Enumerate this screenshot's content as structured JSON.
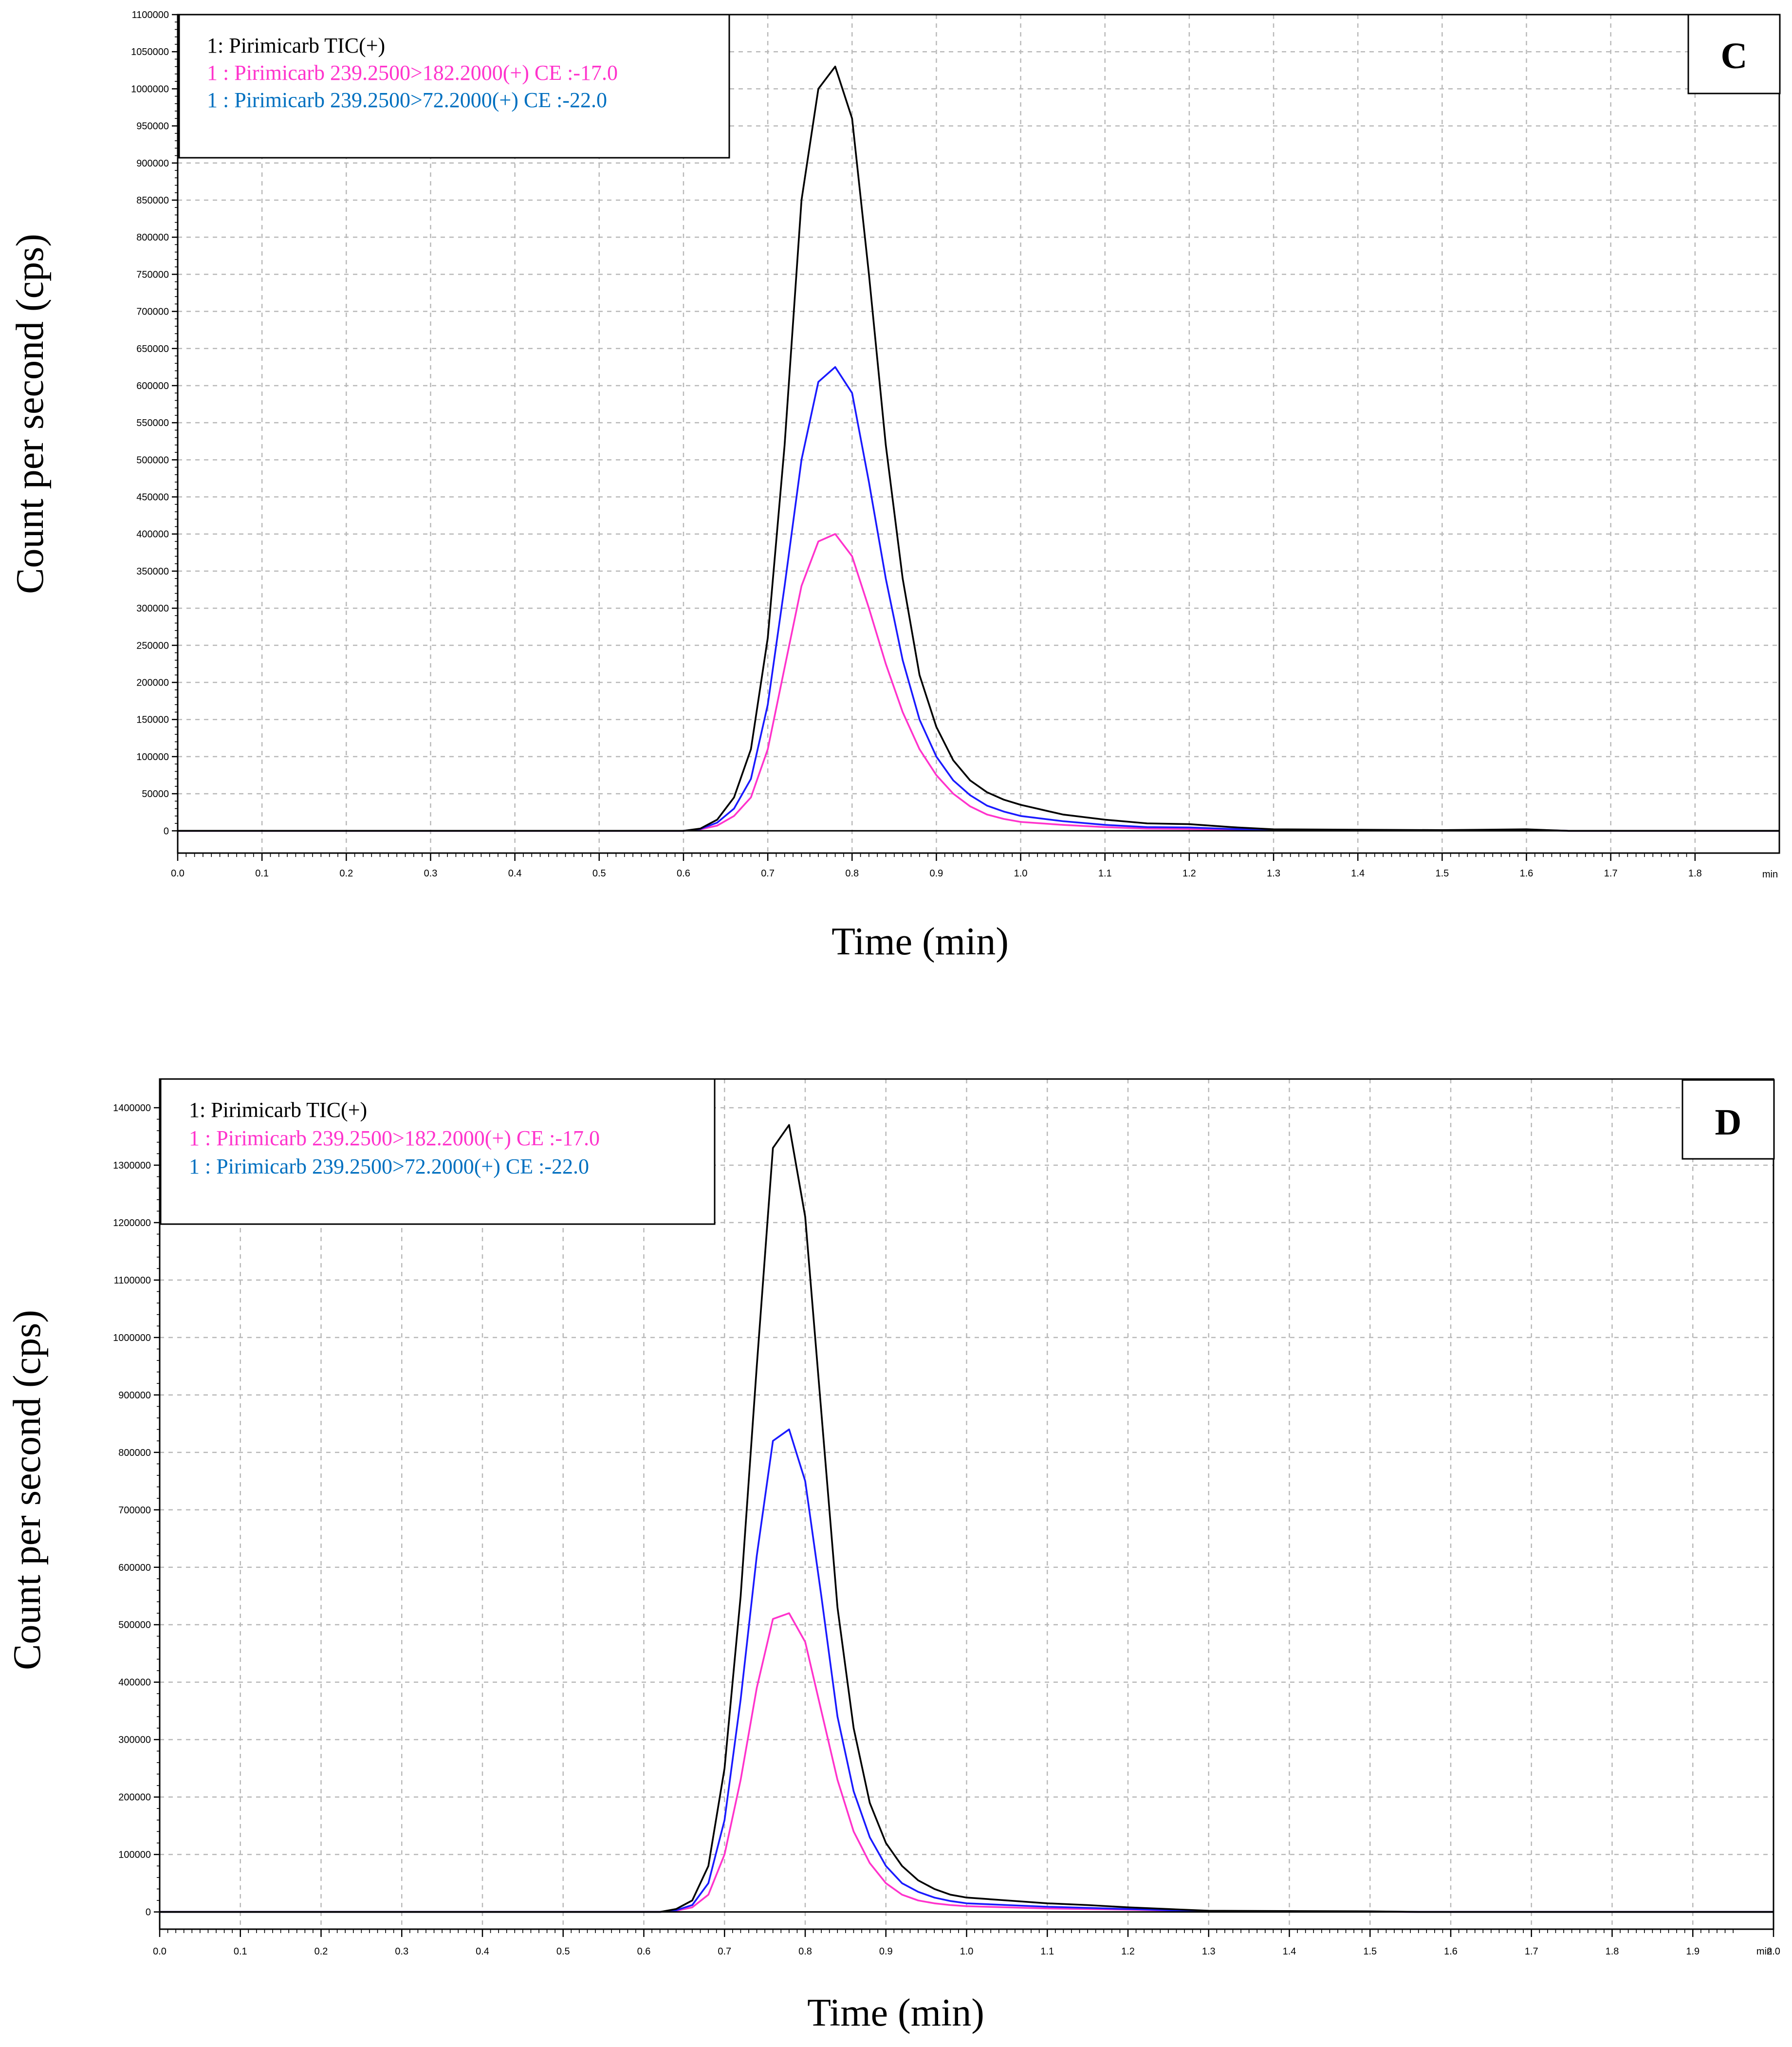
{
  "colors": {
    "tic": "#000000",
    "quant": "#ff33cc",
    "qual": "#1a1aff",
    "legend_qual_text": "#0070c0",
    "grid": "#b9b9b9"
  },
  "chart_data": [
    {
      "type": "line",
      "panel_label": "C",
      "xlabel": "Time (min)",
      "ylabel": "Count per second (cps)",
      "xlim": [
        0.0,
        1.9
      ],
      "ylim": [
        -30000,
        1100000
      ],
      "x_unit_label": "min",
      "x_ticks": [
        "0.0",
        "0.1",
        "0.2",
        "0.3",
        "0.4",
        "0.5",
        "0.6",
        "0.7",
        "0.8",
        "0.9",
        "1.0",
        "1.1",
        "1.2",
        "1.3",
        "1.4",
        "1.5",
        "1.6",
        "1.7",
        "1.8"
      ],
      "x_tick_values": [
        0.0,
        0.1,
        0.2,
        0.3,
        0.4,
        0.5,
        0.6,
        0.7,
        0.8,
        0.9,
        1.0,
        1.1,
        1.2,
        1.3,
        1.4,
        1.5,
        1.6,
        1.7,
        1.8
      ],
      "y_ticks": [
        "0",
        "50000",
        "100000",
        "150000",
        "200000",
        "250000",
        "300000",
        "350000",
        "400000",
        "450000",
        "500000",
        "550000",
        "600000",
        "650000",
        "700000",
        "750000",
        "800000",
        "850000",
        "900000",
        "950000",
        "1000000",
        "1050000",
        "1100000"
      ],
      "y_tick_values": [
        0,
        50000,
        100000,
        150000,
        200000,
        250000,
        300000,
        350000,
        400000,
        450000,
        500000,
        550000,
        600000,
        650000,
        700000,
        750000,
        800000,
        850000,
        900000,
        950000,
        1000000,
        1050000,
        1100000
      ],
      "legend": [
        "1: Pirimicarb TIC(+)",
        "1 : Pirimicarb 239.2500>182.2000(+) CE :-17.0",
        "1 : Pirimicarb 239.2500>72.2000(+) CE :-22.0"
      ],
      "series": [
        {
          "name": "1: Pirimicarb TIC(+)",
          "color_key": "tic",
          "x": [
            0.0,
            0.6,
            0.62,
            0.64,
            0.66,
            0.68,
            0.7,
            0.72,
            0.74,
            0.76,
            0.78,
            0.8,
            0.82,
            0.84,
            0.86,
            0.88,
            0.9,
            0.92,
            0.94,
            0.96,
            0.98,
            1.0,
            1.05,
            1.1,
            1.15,
            1.2,
            1.25,
            1.3,
            1.4,
            1.5,
            1.6,
            1.65,
            1.9
          ],
          "y": [
            0,
            0,
            3000,
            15000,
            45000,
            110000,
            260000,
            520000,
            850000,
            1000000,
            1030000,
            960000,
            750000,
            520000,
            340000,
            210000,
            140000,
            95000,
            68000,
            52000,
            42000,
            35000,
            22000,
            15000,
            10000,
            9000,
            5000,
            2000,
            1500,
            1000,
            2000,
            0,
            0
          ]
        },
        {
          "name": "1 : Pirimicarb 239.2500>182.2000(+) CE :-17.0",
          "color_key": "quant",
          "x": [
            0.0,
            0.6,
            0.62,
            0.64,
            0.66,
            0.68,
            0.7,
            0.72,
            0.74,
            0.76,
            0.78,
            0.8,
            0.82,
            0.84,
            0.86,
            0.88,
            0.9,
            0.92,
            0.94,
            0.96,
            0.98,
            1.0,
            1.05,
            1.1,
            1.15,
            1.2,
            1.25,
            1.3,
            1.4,
            1.5,
            1.6,
            1.65,
            1.9
          ],
          "y": [
            0,
            0,
            2000,
            7000,
            20000,
            45000,
            110000,
            220000,
            330000,
            390000,
            400000,
            370000,
            300000,
            225000,
            160000,
            110000,
            75000,
            50000,
            33000,
            22000,
            16000,
            12000,
            8000,
            5000,
            3000,
            2500,
            1500,
            1000,
            800,
            500,
            1500,
            0,
            0
          ]
        },
        {
          "name": "1 : Pirimicarb 239.2500>72.2000(+) CE :-22.0",
          "color_key": "qual",
          "x": [
            0.0,
            0.6,
            0.62,
            0.64,
            0.66,
            0.68,
            0.7,
            0.72,
            0.74,
            0.76,
            0.78,
            0.8,
            0.82,
            0.84,
            0.86,
            0.88,
            0.9,
            0.92,
            0.94,
            0.96,
            0.98,
            1.0,
            1.05,
            1.1,
            1.15,
            1.2,
            1.25,
            1.3,
            1.4,
            1.5,
            1.6,
            1.65,
            1.9
          ],
          "y": [
            0,
            0,
            2500,
            11000,
            30000,
            70000,
            170000,
            330000,
            500000,
            605000,
            625000,
            590000,
            470000,
            340000,
            230000,
            150000,
            100000,
            68000,
            48000,
            34000,
            26000,
            20000,
            13000,
            8000,
            5000,
            4500,
            2500,
            1500,
            1200,
            800,
            1500,
            0,
            0
          ]
        }
      ]
    },
    {
      "type": "line",
      "panel_label": "D",
      "xlabel": "Time (min)",
      "ylabel": "Count per second (cps)",
      "xlim": [
        0.0,
        2.0
      ],
      "ylim": [
        -30000,
        1450000
      ],
      "x_unit_label": "min",
      "x_ticks": [
        "0.0",
        "0.1",
        "0.2",
        "0.3",
        "0.4",
        "0.5",
        "0.6",
        "0.7",
        "0.8",
        "0.9",
        "1.0",
        "1.1",
        "1.2",
        "1.3",
        "1.4",
        "1.5",
        "1.6",
        "1.7",
        "1.8",
        "1.9",
        "2.0"
      ],
      "x_tick_values": [
        0.0,
        0.1,
        0.2,
        0.3,
        0.4,
        0.5,
        0.6,
        0.7,
        0.8,
        0.9,
        1.0,
        1.1,
        1.2,
        1.3,
        1.4,
        1.5,
        1.6,
        1.7,
        1.8,
        1.9,
        2.0
      ],
      "y_ticks": [
        "0",
        "100000",
        "200000",
        "300000",
        "400000",
        "500000",
        "600000",
        "700000",
        "800000",
        "900000",
        "1000000",
        "1100000",
        "1200000",
        "1300000",
        "1400000"
      ],
      "y_tick_values": [
        0,
        100000,
        200000,
        300000,
        400000,
        500000,
        600000,
        700000,
        800000,
        900000,
        1000000,
        1100000,
        1200000,
        1300000,
        1400000
      ],
      "legend": [
        "1: Pirimicarb TIC(+)",
        "1 : Pirimicarb 239.2500>182.2000(+) CE :-17.0",
        "1 : Pirimicarb 239.2500>72.2000(+) CE :-22.0"
      ],
      "series": [
        {
          "name": "1: Pirimicarb TIC(+)",
          "color_key": "tic",
          "x": [
            0.0,
            0.62,
            0.64,
            0.66,
            0.68,
            0.7,
            0.72,
            0.74,
            0.76,
            0.78,
            0.8,
            0.82,
            0.84,
            0.86,
            0.88,
            0.9,
            0.92,
            0.94,
            0.96,
            0.98,
            1.0,
            1.05,
            1.1,
            1.15,
            1.2,
            1.25,
            1.3,
            1.4,
            1.5,
            1.56,
            2.0
          ],
          "y": [
            0,
            0,
            5000,
            20000,
            80000,
            250000,
            550000,
            950000,
            1330000,
            1370000,
            1210000,
            870000,
            530000,
            320000,
            190000,
            120000,
            80000,
            55000,
            40000,
            30000,
            25000,
            20000,
            15000,
            12000,
            8000,
            5000,
            2000,
            1500,
            1000,
            0,
            0
          ]
        },
        {
          "name": "1 : Pirimicarb 239.2500>182.2000(+) CE :-17.0",
          "color_key": "quant",
          "x": [
            0.0,
            0.62,
            0.64,
            0.66,
            0.68,
            0.7,
            0.72,
            0.74,
            0.76,
            0.78,
            0.8,
            0.82,
            0.84,
            0.86,
            0.88,
            0.9,
            0.92,
            0.94,
            0.96,
            0.98,
            1.0,
            1.05,
            1.1,
            1.15,
            1.2,
            1.25,
            1.3,
            1.4,
            1.5,
            1.56,
            2.0
          ],
          "y": [
            0,
            0,
            2000,
            8000,
            30000,
            100000,
            230000,
            390000,
            510000,
            520000,
            470000,
            350000,
            230000,
            140000,
            85000,
            50000,
            30000,
            20000,
            15000,
            12000,
            10000,
            8000,
            6000,
            5000,
            4000,
            2500,
            1000,
            800,
            500,
            0,
            0
          ]
        },
        {
          "name": "1 : Pirimicarb 239.2500>72.2000(+) CE :-22.0",
          "color_key": "qual",
          "x": [
            0.0,
            0.62,
            0.64,
            0.66,
            0.68,
            0.7,
            0.72,
            0.74,
            0.76,
            0.78,
            0.8,
            0.82,
            0.84,
            0.86,
            0.88,
            0.9,
            0.92,
            0.94,
            0.96,
            0.98,
            1.0,
            1.05,
            1.1,
            1.15,
            1.2,
            1.25,
            1.3,
            1.4,
            1.5,
            1.56,
            2.0
          ],
          "y": [
            0,
            0,
            3000,
            12000,
            50000,
            160000,
            370000,
            620000,
            820000,
            840000,
            750000,
            550000,
            340000,
            210000,
            130000,
            80000,
            50000,
            35000,
            25000,
            19000,
            15000,
            12000,
            9000,
            7000,
            5000,
            3000,
            1500,
            1200,
            800,
            0,
            0
          ]
        }
      ]
    }
  ]
}
